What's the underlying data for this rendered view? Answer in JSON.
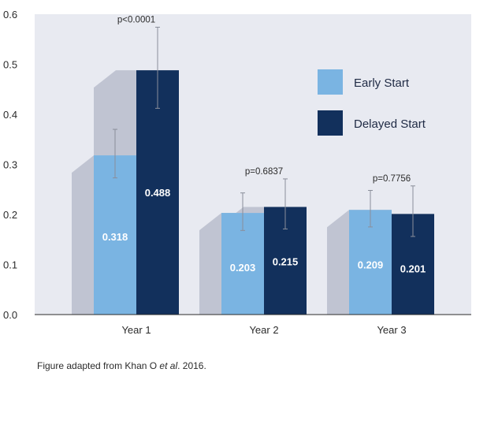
{
  "chart_data": {
    "type": "bar",
    "categories": [
      "Year 1",
      "Year 2",
      "Year 3"
    ],
    "series": [
      {
        "name": "Early Start",
        "color": "#7ab4e2",
        "values": [
          0.318,
          0.203,
          0.209
        ],
        "err_low": [
          0.273,
          0.168,
          0.175
        ],
        "err_high": [
          0.37,
          0.243,
          0.248
        ]
      },
      {
        "name": "Delayed Start",
        "color": "#12305c",
        "values": [
          0.488,
          0.215,
          0.201
        ],
        "err_low": [
          0.412,
          0.171,
          0.156
        ],
        "err_high": [
          0.574,
          0.271,
          0.257
        ]
      }
    ],
    "value_labels": [
      [
        "0.318",
        "0.203",
        "0.209"
      ],
      [
        "0.488",
        "0.215",
        "0.201"
      ]
    ],
    "p_values": [
      "p<0.0001",
      "p=0.6837",
      "p=0.7756"
    ],
    "yticks": [
      "0.0",
      "0.1",
      "0.2",
      "0.3",
      "0.4",
      "0.5",
      "0.6"
    ],
    "ylim": [
      0,
      0.6
    ],
    "legend_position": "top-right",
    "grid": false,
    "colors": {
      "plot_bg": "#e8eaf1",
      "shadow": "#c0c4d2",
      "axis": "#2b2b2b"
    }
  },
  "caption": {
    "prefix": "Figure adapted from Khan O ",
    "italic": "et al",
    "suffix": ". 2016."
  }
}
